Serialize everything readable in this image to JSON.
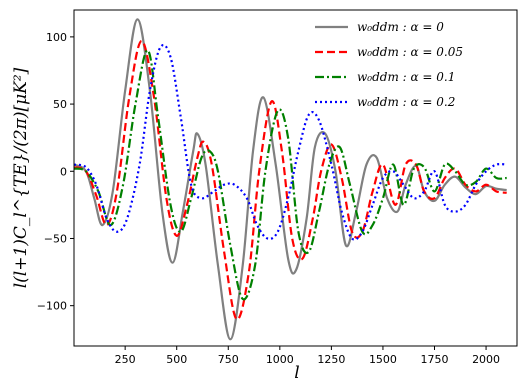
{
  "chart_data": {
    "type": "line",
    "xlabel": "l",
    "ylabel": "l(l+1)C_l^{TE}/(2π)[μK²]",
    "xlim": [
      2,
      2150
    ],
    "ylim": [
      -130,
      120
    ],
    "x_ticks": [
      250,
      500,
      750,
      1000,
      1250,
      1500,
      1750,
      2000
    ],
    "x_tick_labels": [
      "250",
      "500",
      "750",
      "1000",
      "1250",
      "1500",
      "1750",
      "2000"
    ],
    "y_ticks": [
      -100,
      -50,
      0,
      50,
      100
    ],
    "y_tick_labels": [
      "−100",
      "−50",
      "0",
      "50",
      "100"
    ],
    "grid": false,
    "legend_position": "top-right",
    "series": [
      {
        "name": "w₀ddm : α = 0",
        "color": "#808080",
        "style": "solid",
        "x": [
          2,
          60,
          100,
          140,
          190,
          250,
          310,
          370,
          430,
          480,
          530,
          580,
          600,
          640,
          700,
          760,
          820,
          870,
          920,
          980,
          1040,
          1080,
          1130,
          1170,
          1220,
          1270,
          1320,
          1370,
          1420,
          1470,
          1520,
          1570,
          1610,
          1660,
          1700,
          1750,
          1800,
          1850,
          1900,
          1950,
          2000,
          2050,
          2100
        ],
        "y": [
          5,
          0,
          -20,
          -40,
          -15,
          60,
          113,
          60,
          -30,
          -68,
          -30,
          15,
          28,
          5,
          -70,
          -125,
          -70,
          15,
          55,
          5,
          -65,
          -73,
          -35,
          18,
          28,
          0,
          -55,
          -30,
          5,
          10,
          -20,
          -30,
          -10,
          4,
          -15,
          -22,
          -10,
          -4,
          -12,
          -17,
          -11,
          -13,
          -14
        ]
      },
      {
        "name": "w₀ddm : α = 0.05",
        "color": "#ff0000",
        "style": "dashed",
        "x": [
          2,
          60,
          110,
          160,
          210,
          270,
          330,
          390,
          450,
          500,
          550,
          600,
          630,
          670,
          730,
          790,
          850,
          900,
          960,
          1010,
          1060,
          1110,
          1160,
          1200,
          1250,
          1300,
          1350,
          1400,
          1450,
          1500,
          1560,
          1610,
          1660,
          1700,
          1750,
          1800,
          1850,
          1900,
          1950,
          2000,
          2050,
          2100
        ],
        "y": [
          3,
          0,
          -18,
          -40,
          -15,
          55,
          97,
          55,
          -20,
          -48,
          -25,
          10,
          22,
          5,
          -60,
          -110,
          -75,
          0,
          52,
          15,
          -50,
          -65,
          -35,
          0,
          20,
          -5,
          -45,
          -45,
          -15,
          5,
          -25,
          5,
          5,
          -15,
          -20,
          -5,
          2,
          -10,
          -15,
          -10,
          -15,
          -16
        ]
      },
      {
        "name": "w₀ddm : α = 0.1",
        "color": "#008000",
        "style": "dashdot",
        "x": [
          2,
          60,
          120,
          180,
          240,
          300,
          360,
          410,
          470,
          520,
          570,
          620,
          660,
          700,
          760,
          820,
          880,
          930,
          990,
          1040,
          1090,
          1140,
          1190,
          1240,
          1290,
          1340,
          1400,
          1450,
          1500,
          1550,
          1600,
          1650,
          1700,
          1750,
          1800,
          1850,
          1900,
          1950,
          2000,
          2050,
          2100
        ],
        "y": [
          2,
          0,
          -15,
          -40,
          -10,
          50,
          90,
          40,
          -25,
          -45,
          -20,
          10,
          15,
          0,
          -55,
          -95,
          -70,
          0,
          45,
          25,
          -45,
          -60,
          -30,
          5,
          18,
          -10,
          -45,
          -40,
          -20,
          5,
          -25,
          2,
          3,
          -15,
          5,
          0,
          -10,
          -8,
          2,
          -5,
          -5
        ]
      },
      {
        "name": "w₀ddm : α = 0.2",
        "color": "#0000ff",
        "style": "dotted",
        "x": [
          2,
          60,
          110,
          160,
          210,
          260,
          320,
          370,
          420,
          470,
          520,
          570,
          620,
          680,
          730,
          780,
          840,
          890,
          940,
          990,
          1040,
          1090,
          1140,
          1190,
          1250,
          1300,
          1350,
          1400,
          1450,
          1500,
          1550,
          1600,
          1650,
          1700,
          1750,
          1800,
          1850,
          1900,
          1950,
          2000,
          2050,
          2100
        ],
        "y": [
          5,
          3,
          -10,
          -35,
          -45,
          -35,
          5,
          60,
          92,
          85,
          40,
          -10,
          -20,
          -15,
          -10,
          -10,
          -20,
          -40,
          -50,
          -45,
          -20,
          15,
          42,
          38,
          5,
          -30,
          -50,
          -45,
          -25,
          -5,
          0,
          -10,
          -20,
          -15,
          0,
          -25,
          -30,
          -25,
          -10,
          0,
          5,
          5
        ]
      }
    ]
  }
}
